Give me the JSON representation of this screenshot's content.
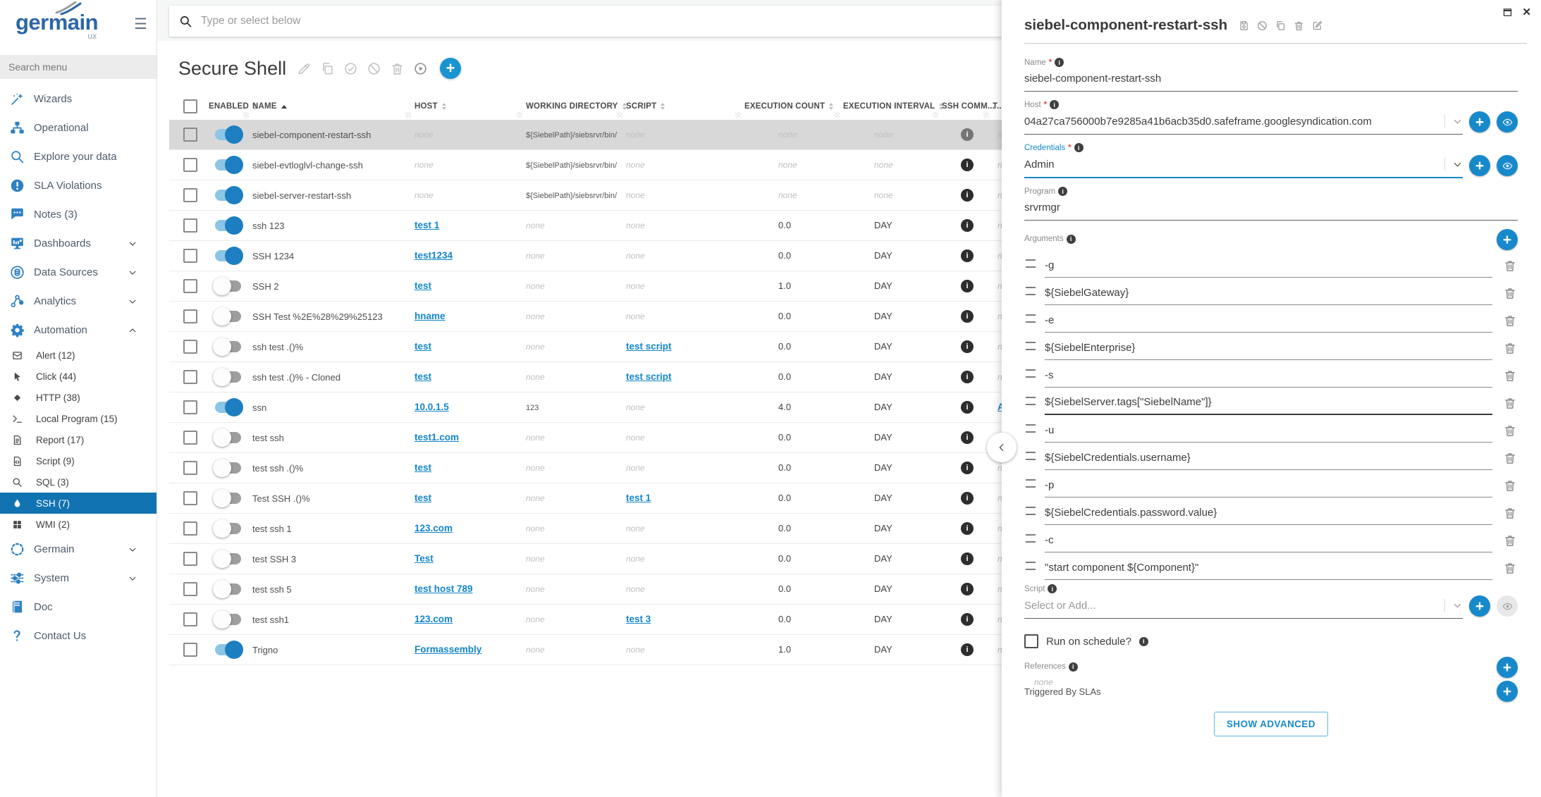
{
  "app": {
    "brand": "germain",
    "brand_sub": "ux"
  },
  "icons": {
    "hamburger": "☰",
    "plus": "+",
    "close": "✕",
    "info": "i",
    "asterisk": "*"
  },
  "colors": {
    "brand_blue": "#2d66a5",
    "accent_blue": "#1789cb",
    "nav_icon_blue": "#2e81c4",
    "selected_nav_bg": "#1173b2",
    "link_blue": "#1386cb",
    "toggle_on_track": "#8cc5e6",
    "toggle_on_knob": "#1d7fc1",
    "selected_row_bg": "#d8d8d8",
    "required_red": "#e04545"
  },
  "sidebar": {
    "search_placeholder": "Search menu",
    "items": [
      {
        "label": "Wizards",
        "icon": "wand"
      },
      {
        "label": "Operational",
        "icon": "sitemap"
      },
      {
        "label": "Explore your data",
        "icon": "search"
      },
      {
        "label": "SLA Violations",
        "icon": "alert-circle"
      },
      {
        "label": "Notes (3)",
        "icon": "chat"
      },
      {
        "label": "Dashboards",
        "icon": "dashboard",
        "chevron": "down"
      },
      {
        "label": "Data Sources",
        "icon": "database",
        "chevron": "down"
      },
      {
        "label": "Analytics",
        "icon": "share",
        "chevron": "down"
      },
      {
        "label": "Automation",
        "icon": "gear",
        "chevron": "up"
      },
      {
        "label": "Alert (12)",
        "icon": "envelope",
        "sub": true
      },
      {
        "label": "Click (44)",
        "icon": "cursor",
        "sub": true
      },
      {
        "label": "HTTP (38)",
        "icon": "diamond",
        "sub": true
      },
      {
        "label": "Local Program (15)",
        "icon": "terminal",
        "sub": true
      },
      {
        "label": "Report (17)",
        "icon": "doc",
        "sub": true
      },
      {
        "label": "Script (9)",
        "icon": "doc-code",
        "sub": true
      },
      {
        "label": "SQL (3)",
        "icon": "search",
        "sub": true
      },
      {
        "label": "SSH (7)",
        "icon": "droplet",
        "sub": true,
        "selected": true
      },
      {
        "label": "WMI (2)",
        "icon": "windows",
        "sub": true
      },
      {
        "label": "Germain",
        "icon": "dashed-circle",
        "chevron": "down"
      },
      {
        "label": "System",
        "icon": "sliders",
        "chevron": "down"
      },
      {
        "label": "Doc",
        "icon": "book"
      },
      {
        "label": "Contact Us",
        "icon": "question"
      }
    ]
  },
  "topbar": {
    "search_placeholder": "Type or select below"
  },
  "list": {
    "title": "Secure Shell",
    "none_label": "none",
    "columns": [
      {
        "key": "enabled",
        "label": "ENABLED",
        "sort": "both"
      },
      {
        "key": "name",
        "label": "NAME",
        "sort": "asc"
      },
      {
        "key": "host",
        "label": "HOST",
        "sort": "both"
      },
      {
        "key": "workdir",
        "label": "WORKING DIRECTORY",
        "sort": "both"
      },
      {
        "key": "script",
        "label": "SCRIPT",
        "sort": "both"
      },
      {
        "key": "count",
        "label": "EXECUTION COUNT",
        "sort": "both"
      },
      {
        "key": "interval",
        "label": "EXECUTION INTERVAL",
        "sort": "both"
      },
      {
        "key": "comm",
        "label": "SSH COMM...",
        "sort": "none"
      },
      {
        "key": "trigger",
        "label": "T...",
        "sort": "none"
      }
    ],
    "rows": [
      {
        "name": "siebel-component-restart-ssh",
        "enabled": true,
        "selected": true,
        "host": null,
        "workdir": "${SiebelPath}/siebsrvr/bin/",
        "script": null,
        "count": null,
        "interval": null,
        "trigger": null
      },
      {
        "name": "siebel-evtloglvl-change-ssh",
        "enabled": true,
        "host": null,
        "workdir": "${SiebelPath}/siebsrvr/bin/",
        "script": null,
        "count": null,
        "interval": null,
        "trigger": null
      },
      {
        "name": "siebel-server-restart-ssh",
        "enabled": true,
        "host": null,
        "workdir": "${SiebelPath}/siebsrvr/bin/",
        "script": null,
        "count": null,
        "interval": null,
        "trigger": null
      },
      {
        "name": "ssh 123",
        "enabled": true,
        "host": "test 1",
        "workdir": null,
        "script": null,
        "count": "0.0",
        "interval": "DAY",
        "trigger": null
      },
      {
        "name": "SSH 1234",
        "enabled": true,
        "host": "test1234",
        "workdir": null,
        "script": null,
        "count": "0.0",
        "interval": "DAY",
        "trigger": null
      },
      {
        "name": "SSH 2",
        "enabled": false,
        "host": "test",
        "workdir": null,
        "script": null,
        "count": "1.0",
        "interval": "DAY",
        "trigger": null
      },
      {
        "name": "SSH Test %2E%28%29%25123",
        "enabled": false,
        "host": "hname",
        "workdir": null,
        "script": null,
        "count": "0.0",
        "interval": "DAY",
        "trigger": null
      },
      {
        "name": "ssh test .()%",
        "enabled": false,
        "host": "test",
        "workdir": null,
        "script": "test script",
        "count": "0.0",
        "interval": "DAY",
        "trigger": null
      },
      {
        "name": "ssh test .()% - Cloned",
        "enabled": false,
        "host": "test",
        "workdir": null,
        "script": "test script",
        "count": "0.0",
        "interval": "DAY",
        "trigger": null
      },
      {
        "name": "ssn",
        "enabled": true,
        "host": "10.0.1.5",
        "workdir": "123",
        "script": null,
        "count": "4.0",
        "interval": "DAY",
        "trigger": "A"
      },
      {
        "name": "test ssh",
        "enabled": false,
        "host": "test1.com",
        "workdir": null,
        "script": null,
        "count": "0.0",
        "interval": "DAY",
        "trigger": null
      },
      {
        "name": "test ssh .()%",
        "enabled": false,
        "host": "test",
        "workdir": null,
        "script": null,
        "count": "0.0",
        "interval": "DAY",
        "trigger": null
      },
      {
        "name": "Test SSH .()%",
        "enabled": false,
        "host": "test",
        "workdir": null,
        "script": "test 1",
        "count": "0.0",
        "interval": "DAY",
        "trigger": null
      },
      {
        "name": "test ssh 1",
        "enabled": false,
        "host": "123.com",
        "workdir": null,
        "script": null,
        "count": "0.0",
        "interval": "DAY",
        "trigger": null
      },
      {
        "name": "test SSH 3",
        "enabled": false,
        "host": "Test",
        "workdir": null,
        "script": null,
        "count": "0.0",
        "interval": "DAY",
        "trigger": null
      },
      {
        "name": "test ssh 5",
        "enabled": false,
        "host": "test host 789",
        "workdir": null,
        "script": null,
        "count": "0.0",
        "interval": "DAY",
        "trigger": null
      },
      {
        "name": "test ssh1",
        "enabled": false,
        "host": "123.com",
        "workdir": null,
        "script": "test 3",
        "count": "0.0",
        "interval": "DAY",
        "trigger": null
      },
      {
        "name": "Trigno",
        "enabled": true,
        "host": "Formassembly",
        "workdir": null,
        "script": null,
        "count": "1.0",
        "interval": "DAY",
        "trigger": null
      }
    ]
  },
  "panel": {
    "title": "siebel-component-restart-ssh",
    "fields": {
      "name": {
        "label": "Name",
        "required": true,
        "value": "siebel-component-restart-ssh"
      },
      "host": {
        "label": "Host",
        "required": true,
        "value": "04a27ca756000b7e9285a41b6acb35d0.safeframe.googlesyndication.com"
      },
      "credentials": {
        "label": "Credentials",
        "required": true,
        "value": "Admin"
      },
      "program": {
        "label": "Program",
        "value": "srvrmgr"
      },
      "arguments_label": "Arguments",
      "script": {
        "label": "Script",
        "placeholder": "Select or Add..."
      },
      "schedule_label": "Run on schedule?",
      "references_label": "References",
      "references_value": "none",
      "triggered_label": "Triggered By SLAs",
      "show_advanced_label": "SHOW ADVANCED"
    },
    "arguments": [
      "-g",
      "${SiebelGateway}",
      "-e",
      "${SiebelEnterprise}",
      "-s",
      "${SiebelServer.tags[\"SiebelName\"]}",
      "-u",
      "${SiebelCredentials.username}",
      "-p",
      "${SiebelCredentials.password.value}",
      "-c",
      "\"start component ${Component}\""
    ],
    "focused_argument_index": 5
  }
}
